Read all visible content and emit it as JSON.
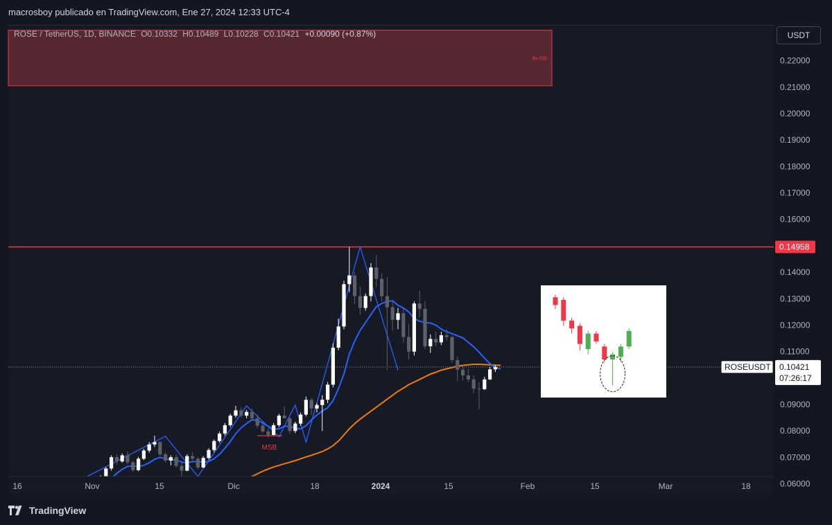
{
  "header": {
    "publish_text": "macrosboy publicado en TradingView.com, Ene 27, 2024 12:33 UTC-4"
  },
  "symbol": {
    "name": "ROSE / TetherUS, 1D, BINANCE",
    "open": "O0.10332",
    "high": "H0.10489",
    "low": "L0.10228",
    "close": "C0.10421",
    "change": "+0.00090 (+0.87%)"
  },
  "currency_button": "USDT",
  "footer": {
    "brand": "TradingView"
  },
  "colors": {
    "background": "#161a25",
    "up_candle": "#ffffff",
    "down_candle": "#5d606b",
    "ema_short": "#2962ff",
    "ema_long": "#f57c00",
    "resistance": "#f23645",
    "ob_zone_fill": "#5e2a33",
    "ob_zone_border": "#f23645",
    "inset_up": "#4caf50",
    "inset_down": "#f23645"
  },
  "chart_data": {
    "type": "candlestick",
    "x_tick_labels": [
      "16",
      "Nov",
      "15",
      "Dic",
      "18",
      "2024",
      "15",
      "Feb",
      "15",
      "Mar",
      "18"
    ],
    "y_tick_labels": [
      "0.22000",
      "0.21000",
      "0.20000",
      "0.19000",
      "0.18000",
      "0.17000",
      "0.16000",
      "0.15000",
      "0.14000",
      "0.13000",
      "0.12000",
      "0.11000",
      "0.10000",
      "0.09000",
      "0.08000",
      "0.07000",
      "0.06000"
    ],
    "ylim": [
      0.0565,
      0.2335
    ],
    "price_tag": {
      "value": "0.10421",
      "label": "ROSEUSDT",
      "countdown": "07:26:17"
    },
    "resistance_level": {
      "value": 0.14958,
      "label": "0.14958"
    },
    "order_block": {
      "label": "Be-OB",
      "from": 0.2105,
      "to": 0.2315
    },
    "annotation": {
      "label": "MSB",
      "value": 0.0782
    },
    "ohlc": [
      [
        0.0601,
        0.0633,
        0.0598,
        0.0628
      ],
      [
        0.0628,
        0.0663,
        0.062,
        0.0658
      ],
      [
        0.0658,
        0.0708,
        0.065,
        0.0701
      ],
      [
        0.0701,
        0.0712,
        0.0672,
        0.0685
      ],
      [
        0.0685,
        0.0715,
        0.068,
        0.0708
      ],
      [
        0.0708,
        0.0722,
        0.0675,
        0.0682
      ],
      [
        0.0682,
        0.0688,
        0.0645,
        0.0652
      ],
      [
        0.0652,
        0.0702,
        0.0648,
        0.0695
      ],
      [
        0.0695,
        0.0732,
        0.069,
        0.0726
      ],
      [
        0.0726,
        0.0758,
        0.0718,
        0.0749
      ],
      [
        0.0749,
        0.0782,
        0.074,
        0.0758
      ],
      [
        0.0758,
        0.0762,
        0.0705,
        0.0712
      ],
      [
        0.0712,
        0.072,
        0.068,
        0.0688
      ],
      [
        0.0688,
        0.0708,
        0.067,
        0.0701
      ],
      [
        0.0701,
        0.0712,
        0.0662,
        0.0668
      ],
      [
        0.0668,
        0.068,
        0.0625,
        0.065
      ],
      [
        0.065,
        0.0712,
        0.0648,
        0.0705
      ],
      [
        0.0705,
        0.072,
        0.0688,
        0.0695
      ],
      [
        0.0695,
        0.0702,
        0.0655,
        0.0662
      ],
      [
        0.0662,
        0.0705,
        0.066,
        0.0698
      ],
      [
        0.0698,
        0.0735,
        0.0692,
        0.0728
      ],
      [
        0.0728,
        0.0768,
        0.072,
        0.0762
      ],
      [
        0.0762,
        0.0798,
        0.0755,
        0.079
      ],
      [
        0.079,
        0.083,
        0.0782,
        0.0822
      ],
      [
        0.0822,
        0.0865,
        0.0815,
        0.0858
      ],
      [
        0.0858,
        0.0895,
        0.085,
        0.0878
      ],
      [
        0.0878,
        0.089,
        0.085,
        0.0858
      ],
      [
        0.0858,
        0.088,
        0.0848,
        0.0872
      ],
      [
        0.0872,
        0.0885,
        0.084,
        0.0848
      ],
      [
        0.0848,
        0.0862,
        0.081,
        0.082
      ],
      [
        0.082,
        0.0832,
        0.0792,
        0.0798
      ],
      [
        0.0798,
        0.081,
        0.0775,
        0.0785
      ],
      [
        0.0785,
        0.083,
        0.078,
        0.0822
      ],
      [
        0.0822,
        0.0865,
        0.0815,
        0.0858
      ],
      [
        0.0858,
        0.0892,
        0.085,
        0.0848
      ],
      [
        0.0848,
        0.0852,
        0.079,
        0.08
      ],
      [
        0.08,
        0.0835,
        0.0792,
        0.0828
      ],
      [
        0.0828,
        0.087,
        0.082,
        0.0862
      ],
      [
        0.0862,
        0.093,
        0.0855,
        0.0918
      ],
      [
        0.0918,
        0.0925,
        0.086,
        0.0885
      ],
      [
        0.0885,
        0.0905,
        0.087,
        0.0898
      ],
      [
        0.0898,
        0.0935,
        0.08,
        0.0918
      ],
      [
        0.0918,
        0.0985,
        0.0905,
        0.0975
      ],
      [
        0.0975,
        0.1132,
        0.0965,
        0.1115
      ],
      [
        0.1115,
        0.1225,
        0.1105,
        0.1195
      ],
      [
        0.1195,
        0.1368,
        0.1185,
        0.1355
      ],
      [
        0.1355,
        0.1496,
        0.1325,
        0.1388
      ],
      [
        0.1388,
        0.1402,
        0.128,
        0.131
      ],
      [
        0.131,
        0.1345,
        0.124,
        0.1265
      ],
      [
        0.1265,
        0.132,
        0.1255,
        0.131
      ],
      [
        0.131,
        0.1435,
        0.129,
        0.1418
      ],
      [
        0.1418,
        0.1465,
        0.1345,
        0.1375
      ],
      [
        0.1375,
        0.1395,
        0.129,
        0.131
      ],
      [
        0.131,
        0.1382,
        0.103,
        0.1268
      ],
      [
        0.1268,
        0.1288,
        0.118,
        0.122
      ],
      [
        0.122,
        0.1265,
        0.1185,
        0.1245
      ],
      [
        0.1245,
        0.1262,
        0.1135,
        0.1155
      ],
      [
        0.1155,
        0.1205,
        0.107,
        0.11
      ],
      [
        0.11,
        0.129,
        0.1085,
        0.1282
      ],
      [
        0.1282,
        0.133,
        0.123,
        0.1262
      ],
      [
        0.1262,
        0.1292,
        0.111,
        0.112
      ],
      [
        0.112,
        0.1165,
        0.1095,
        0.1148
      ],
      [
        0.1148,
        0.1175,
        0.112,
        0.1135
      ],
      [
        0.1135,
        0.1175,
        0.1125,
        0.1162
      ],
      [
        0.1162,
        0.1185,
        0.1142,
        0.1155
      ],
      [
        0.1155,
        0.116,
        0.1058,
        0.1068
      ],
      [
        0.1068,
        0.1082,
        0.0988,
        0.1032
      ],
      [
        0.1032,
        0.1042,
        0.099,
        0.101
      ],
      [
        0.101,
        0.1035,
        0.0985,
        0.0995
      ],
      [
        0.0995,
        0.101,
        0.0942,
        0.096
      ],
      [
        0.096,
        0.0985,
        0.0882,
        0.0958
      ],
      [
        0.0958,
        0.1005,
        0.0955,
        0.0995
      ],
      [
        0.0995,
        0.1042,
        0.0992,
        0.1033
      ],
      [
        0.1033,
        0.1049,
        0.1023,
        0.1042
      ]
    ],
    "ema_short": [
      0.06,
      0.0608,
      0.062,
      0.064,
      0.0655,
      0.0666,
      0.0667,
      0.0666,
      0.067,
      0.068,
      0.0693,
      0.07,
      0.0695,
      0.0692,
      0.069,
      0.0682,
      0.068,
      0.0684,
      0.0685,
      0.0682,
      0.0685,
      0.0695,
      0.0712,
      0.0735,
      0.076,
      0.079,
      0.0812,
      0.0828,
      0.0842,
      0.084,
      0.083,
      0.0818,
      0.0808,
      0.0808,
      0.0818,
      0.0818,
      0.081,
      0.0808,
      0.082,
      0.0842,
      0.086,
      0.0875,
      0.0888,
      0.0915,
      0.096,
      0.1015,
      0.109,
      0.114,
      0.118,
      0.121,
      0.124,
      0.127,
      0.1282,
      0.129,
      0.1292,
      0.1275,
      0.1265,
      0.125,
      0.1225,
      0.1215,
      0.121,
      0.1208,
      0.12,
      0.1185,
      0.1175,
      0.1168,
      0.116,
      0.1152,
      0.1135,
      0.1118,
      0.1098,
      0.1075,
      0.1055,
      0.104,
      0.1035
    ],
    "ema_long": [
      null,
      null,
      null,
      null,
      null,
      null,
      null,
      null,
      null,
      null,
      null,
      null,
      null,
      null,
      null,
      null,
      null,
      null,
      null,
      null,
      null,
      null,
      0.0565,
      0.0575,
      0.0585,
      0.0596,
      0.0608,
      0.0618,
      0.0628,
      0.0638,
      0.0648,
      0.0656,
      0.0664,
      0.067,
      0.0676,
      0.0682,
      0.0688,
      0.0695,
      0.0702,
      0.0708,
      0.0715,
      0.0722,
      0.0732,
      0.0745,
      0.0762,
      0.0785,
      0.0808,
      0.0828,
      0.0845,
      0.086,
      0.0875,
      0.089,
      0.0905,
      0.092,
      0.0935,
      0.095,
      0.0962,
      0.0975,
      0.0985,
      0.0995,
      0.1005,
      0.1015,
      0.1022,
      0.103,
      0.1035,
      0.104,
      0.1045,
      0.1048,
      0.105,
      0.1052,
      0.1052,
      0.1051,
      0.105,
      0.1049,
      0.1048
    ],
    "zigzag": [
      [
        0.058,
        0
      ],
      [
        0.078,
        12
      ],
      [
        0.0628,
        18
      ],
      [
        0.0895,
        27
      ],
      [
        0.0778,
        33
      ],
      [
        0.0898,
        36
      ],
      [
        0.0758,
        38
      ],
      [
        0.1496,
        48
      ],
      [
        0.103,
        55
      ]
    ],
    "inset_pattern": {
      "candles": [
        {
          "o": 0.13,
          "h": 0.131,
          "l": 0.1255,
          "c": 0.127,
          "dir": "down"
        },
        {
          "o": 0.129,
          "h": 0.13,
          "l": 0.119,
          "c": 0.121,
          "dir": "down"
        },
        {
          "o": 0.121,
          "h": 0.122,
          "l": 0.116,
          "c": 0.118,
          "dir": "down"
        },
        {
          "o": 0.119,
          "h": 0.12,
          "l": 0.1095,
          "c": 0.112,
          "dir": "down"
        },
        {
          "o": 0.11,
          "h": 0.117,
          "l": 0.108,
          "c": 0.116,
          "dir": "up"
        },
        {
          "o": 0.116,
          "h": 0.117,
          "l": 0.112,
          "c": 0.113,
          "dir": "down"
        },
        {
          "o": 0.111,
          "h": 0.112,
          "l": 0.105,
          "c": 0.106,
          "dir": "down"
        },
        {
          "o": 0.106,
          "h": 0.109,
          "l": 0.096,
          "c": 0.108,
          "dir": "up"
        },
        {
          "o": 0.107,
          "h": 0.112,
          "l": 0.105,
          "c": 0.111,
          "dir": "up"
        },
        {
          "o": 0.111,
          "h": 0.118,
          "l": 0.11,
          "c": 0.117,
          "dir": "up"
        }
      ]
    }
  }
}
